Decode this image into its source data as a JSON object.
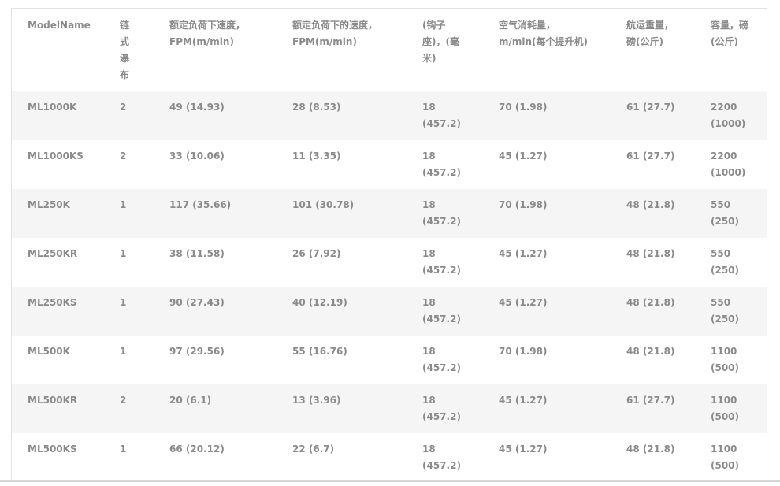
{
  "table": {
    "headers": [
      [
        "ModelName"
      ],
      [
        "链",
        "式",
        "瀑",
        "布"
      ],
      [
        "额定负荷下速度，",
        "FPM(m/min)"
      ],
      [
        "额定负荷下的速度，",
        "FPM(m/min)"
      ],
      [
        "(钩子",
        "座)，(毫",
        "米)"
      ],
      [
        "空气消耗量，",
        "m/min(每个提升机)"
      ],
      [
        "航运重量，",
        "磅(公斤)"
      ],
      [
        "容量，磅",
        "(公斤)"
      ]
    ],
    "rows": [
      [
        [
          "ML1000K"
        ],
        [
          "2"
        ],
        [
          "49 (14.93)"
        ],
        [
          "28 (8.53)"
        ],
        [
          "18",
          "(457.2)"
        ],
        [
          "70 (1.98)"
        ],
        [
          "61 (27.7)"
        ],
        [
          "2200",
          "(1000)"
        ]
      ],
      [
        [
          "ML1000KS"
        ],
        [
          "2"
        ],
        [
          "33 (10.06)"
        ],
        [
          "11 (3.35)"
        ],
        [
          "18",
          "(457.2)"
        ],
        [
          "45 (1.27)"
        ],
        [
          "61 (27.7)"
        ],
        [
          "2200",
          "(1000)"
        ]
      ],
      [
        [
          "ML250K"
        ],
        [
          "1"
        ],
        [
          "117 (35.66)"
        ],
        [
          "101 (30.78)"
        ],
        [
          "18",
          "(457.2)"
        ],
        [
          "70 (1.98)"
        ],
        [
          "48 (21.8)"
        ],
        [
          "550",
          "(250)"
        ]
      ],
      [
        [
          "ML250KR"
        ],
        [
          "1"
        ],
        [
          "38 (11.58)"
        ],
        [
          "26 (7.92)"
        ],
        [
          "18",
          "(457.2)"
        ],
        [
          "45 (1.27)"
        ],
        [
          "48 (21.8)"
        ],
        [
          "550",
          "(250)"
        ]
      ],
      [
        [
          "ML250KS"
        ],
        [
          "1"
        ],
        [
          "90 (27.43)"
        ],
        [
          "40 (12.19)"
        ],
        [
          "18",
          "(457.2)"
        ],
        [
          "45 (1.27)"
        ],
        [
          "48 (21.8)"
        ],
        [
          "550",
          "(250)"
        ]
      ],
      [
        [
          "ML500K"
        ],
        [
          "1"
        ],
        [
          "97 (29.56)"
        ],
        [
          "55 (16.76)"
        ],
        [
          "18",
          "(457.2)"
        ],
        [
          "70 (1.98)"
        ],
        [
          "48 (21.8)"
        ],
        [
          "1100",
          "(500)"
        ]
      ],
      [
        [
          "ML500KR"
        ],
        [
          "2"
        ],
        [
          "20 (6.1)"
        ],
        [
          "13 (3.96)"
        ],
        [
          "18",
          "(457.2)"
        ],
        [
          "45 (1.27)"
        ],
        [
          "61 (27.7)"
        ],
        [
          "1100",
          "(500)"
        ]
      ],
      [
        [
          "ML500KS"
        ],
        [
          "1"
        ],
        [
          "66 (20.12)"
        ],
        [
          "22 (6.7)"
        ],
        [
          "18",
          "(457.2)"
        ],
        [
          "45 (1.27)"
        ],
        [
          "48 (21.8)"
        ],
        [
          "1100",
          "(500)"
        ]
      ]
    ]
  }
}
